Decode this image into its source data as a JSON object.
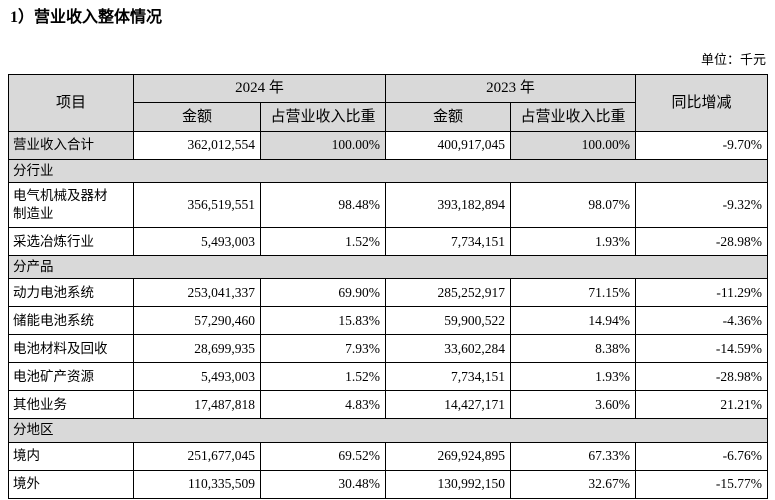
{
  "page": {
    "title": "1）营业收入整体情况",
    "unit_label": "单位：千元"
  },
  "colors": {
    "shade_bg": "#d9d9d9",
    "border": "#000000",
    "text": "#000000",
    "background": "#ffffff"
  },
  "table": {
    "headers": {
      "item": "项目",
      "year_2024": "2024 年",
      "year_2023": "2023 年",
      "yoy": "同比增减",
      "amount": "金额",
      "ratio": "占营业收入比重"
    },
    "rows": [
      {
        "type": "data",
        "label": "营业收入合计",
        "amount_2024": "362,012,554",
        "ratio_2024": "100.00%",
        "amount_2023": "400,917,045",
        "ratio_2023": "100.00%",
        "yoy": "-9.70%",
        "shaded": true
      },
      {
        "type": "section",
        "label": "分行业"
      },
      {
        "type": "data",
        "label": "电气机械及器材制造业",
        "amount_2024": "356,519,551",
        "ratio_2024": "98.48%",
        "amount_2023": "393,182,894",
        "ratio_2023": "98.07%",
        "yoy": "-9.32%",
        "tall": true
      },
      {
        "type": "data",
        "label": "采选冶炼行业",
        "amount_2024": "5,493,003",
        "ratio_2024": "1.52%",
        "amount_2023": "7,734,151",
        "ratio_2023": "1.93%",
        "yoy": "-28.98%"
      },
      {
        "type": "section",
        "label": "分产品"
      },
      {
        "type": "data",
        "label": "动力电池系统",
        "amount_2024": "253,041,337",
        "ratio_2024": "69.90%",
        "amount_2023": "285,252,917",
        "ratio_2023": "71.15%",
        "yoy": "-11.29%"
      },
      {
        "type": "data",
        "label": "储能电池系统",
        "amount_2024": "57,290,460",
        "ratio_2024": "15.83%",
        "amount_2023": "59,900,522",
        "ratio_2023": "14.94%",
        "yoy": "-4.36%"
      },
      {
        "type": "data",
        "label": "电池材料及回收",
        "amount_2024": "28,699,935",
        "ratio_2024": "7.93%",
        "amount_2023": "33,602,284",
        "ratio_2023": "8.38%",
        "yoy": "-14.59%"
      },
      {
        "type": "data",
        "label": "电池矿产资源",
        "amount_2024": "5,493,003",
        "ratio_2024": "1.52%",
        "amount_2023": "7,734,151",
        "ratio_2023": "1.93%",
        "yoy": "-28.98%"
      },
      {
        "type": "data",
        "label": "其他业务",
        "amount_2024": "17,487,818",
        "ratio_2024": "4.83%",
        "amount_2023": "14,427,171",
        "ratio_2023": "3.60%",
        "yoy": "21.21%"
      },
      {
        "type": "section",
        "label": "分地区"
      },
      {
        "type": "data",
        "label": "境内",
        "amount_2024": "251,677,045",
        "ratio_2024": "69.52%",
        "amount_2023": "269,924,895",
        "ratio_2023": "67.33%",
        "yoy": "-6.76%"
      },
      {
        "type": "data",
        "label": "境外",
        "amount_2024": "110,335,509",
        "ratio_2024": "30.48%",
        "amount_2023": "130,992,150",
        "ratio_2023": "32.67%",
        "yoy": "-15.77%"
      }
    ]
  }
}
